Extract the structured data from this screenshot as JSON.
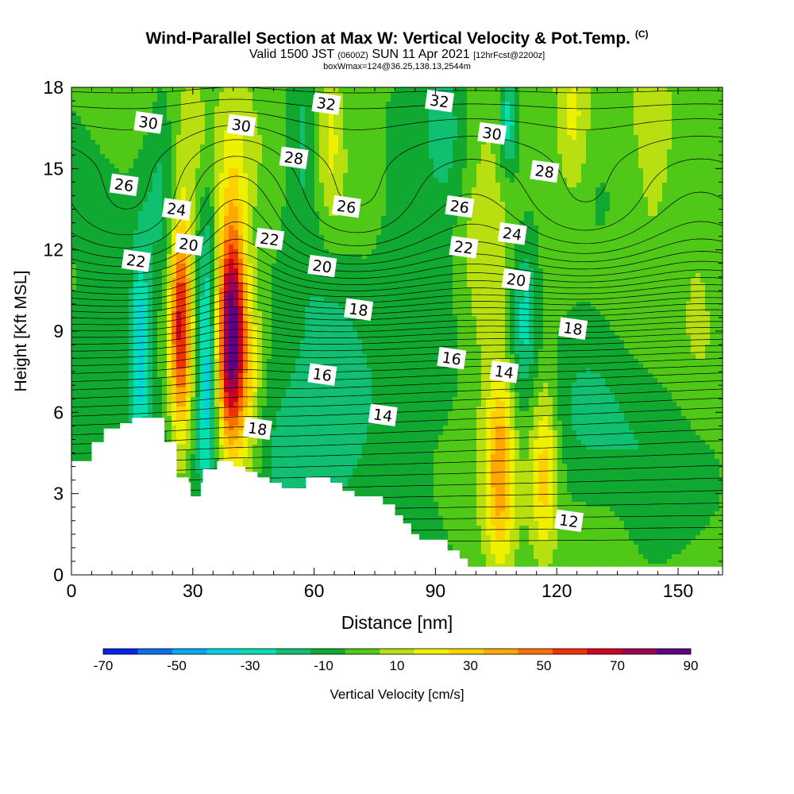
{
  "title": {
    "main": "Wind-Parallel Section at Max W: Vertical Velocity & Pot.Temp.",
    "copyright": "(C)",
    "valid_prefix": "Valid 1500 JST",
    "valid_utc": "(0600Z)",
    "valid_date": "SUN 11 Apr 2021",
    "forecast": "[12hrFcst@2200z]",
    "box_info": "boxWmax=124@36.25,138.13,2544m"
  },
  "chart_data": {
    "type": "heatmap",
    "xlabel": "Distance [nm]",
    "ylabel": "Height [Kft MSL]",
    "xlim": [
      0,
      161
    ],
    "ylim": [
      0,
      18
    ],
    "x_ticks": [
      0,
      30,
      60,
      90,
      120,
      150
    ],
    "y_ticks": [
      0,
      3,
      6,
      9,
      12,
      15,
      18
    ],
    "grid": false,
    "colorbar": {
      "label": "Vertical Velocity [cm/s]",
      "tick_labels": [
        -70,
        -50,
        -30,
        -10,
        10,
        30,
        50,
        70,
        90
      ],
      "bounds": [
        -70,
        -60,
        -50,
        -40,
        -30,
        -20,
        -10,
        0,
        10,
        20,
        30,
        40,
        50,
        60,
        70,
        80,
        90
      ],
      "colors": [
        "#0022ee",
        "#0a6ee8",
        "#00aaee",
        "#00d0e0",
        "#00e0b0",
        "#10c070",
        "#10a830",
        "#50c818",
        "#b8e010",
        "#eef000",
        "#ffd000",
        "#ffa800",
        "#ff7000",
        "#f03000",
        "#d00020",
        "#a00050",
        "#600080"
      ]
    },
    "terrain_profile": [
      [
        0,
        4.2
      ],
      [
        5,
        4.2
      ],
      [
        5,
        4.9
      ],
      [
        8,
        4.9
      ],
      [
        8,
        5.4
      ],
      [
        12,
        5.4
      ],
      [
        12,
        5.6
      ],
      [
        15,
        5.6
      ],
      [
        15,
        5.8
      ],
      [
        23,
        5.8
      ],
      [
        23,
        4.9
      ],
      [
        26,
        4.9
      ],
      [
        26,
        3.6
      ],
      [
        29,
        3.6
      ],
      [
        29,
        3.4
      ],
      [
        29.5,
        3.4
      ],
      [
        29.5,
        2.9
      ],
      [
        32,
        2.9
      ],
      [
        32,
        3.4
      ],
      [
        32.5,
        3.4
      ],
      [
        32.5,
        3.9
      ],
      [
        36,
        3.9
      ],
      [
        36,
        4.2
      ],
      [
        40,
        4.2
      ],
      [
        40,
        4.0
      ],
      [
        43,
        4.0
      ],
      [
        43,
        3.8
      ],
      [
        46,
        3.8
      ],
      [
        46,
        3.6
      ],
      [
        49,
        3.6
      ],
      [
        49,
        3.4
      ],
      [
        52,
        3.4
      ],
      [
        52,
        3.2
      ],
      [
        58,
        3.2
      ],
      [
        58,
        3.6
      ],
      [
        64,
        3.6
      ],
      [
        64,
        3.4
      ],
      [
        67,
        3.4
      ],
      [
        67,
        3.1
      ],
      [
        70,
        3.1
      ],
      [
        70,
        2.9
      ],
      [
        77,
        2.9
      ],
      [
        77,
        2.6
      ],
      [
        80,
        2.6
      ],
      [
        80,
        2.2
      ],
      [
        82,
        2.2
      ],
      [
        82,
        1.9
      ],
      [
        84,
        1.9
      ],
      [
        84,
        1.5
      ],
      [
        86,
        1.5
      ],
      [
        86,
        1.3
      ],
      [
        93,
        1.3
      ],
      [
        93,
        0.9
      ],
      [
        96,
        0.9
      ],
      [
        96,
        0.6
      ],
      [
        98,
        0.6
      ],
      [
        98,
        0.3
      ],
      [
        161,
        0.3
      ]
    ],
    "vertical_velocity_features": [
      {
        "x": 10,
        "y": 8.5,
        "value": -12,
        "sx": 7,
        "sy": 4
      },
      {
        "x": 17,
        "y": 8.5,
        "value": -35,
        "sx": 1.6,
        "sy": 2.6
      },
      {
        "x": 27,
        "y": 9.3,
        "value": 72,
        "sx": 2.0,
        "sy": 3.0
      },
      {
        "x": 33.5,
        "y": 7.6,
        "value": -40,
        "sx": 1.8,
        "sy": 3.6
      },
      {
        "x": 39.5,
        "y": 9.0,
        "value": 95,
        "sx": 2.4,
        "sy": 3.0
      },
      {
        "x": 44,
        "y": 7.0,
        "value": 18,
        "sx": 2.2,
        "sy": 3.0
      },
      {
        "x": 52,
        "y": 5.5,
        "value": -14,
        "sx": 6,
        "sy": 2.5
      },
      {
        "x": 65,
        "y": 6.5,
        "value": -16,
        "sx": 6,
        "sy": 3
      },
      {
        "x": 76,
        "y": 5.5,
        "value": -14,
        "sx": 8,
        "sy": 2.5
      },
      {
        "x": 64,
        "y": 16.5,
        "value": 22,
        "sx": 2.5,
        "sy": 2.5
      },
      {
        "x": 57,
        "y": 15.5,
        "value": -15,
        "sx": 3,
        "sy": 2.5
      },
      {
        "x": 30,
        "y": 16.0,
        "value": 12,
        "sx": 3,
        "sy": 2.5
      },
      {
        "x": 40,
        "y": 15.5,
        "value": 12,
        "sx": 3,
        "sy": 2.5
      },
      {
        "x": 22,
        "y": 14.5,
        "value": -12,
        "sx": 3,
        "sy": 3
      },
      {
        "x": 102,
        "y": 13.0,
        "value": 12,
        "sx": 4,
        "sy": 5
      },
      {
        "x": 108,
        "y": 16.8,
        "value": -32,
        "sx": 1.5,
        "sy": 1.3
      },
      {
        "x": 112,
        "y": 9.7,
        "value": -30,
        "sx": 2.5,
        "sy": 2.0
      },
      {
        "x": 124,
        "y": 16.5,
        "value": 22,
        "sx": 3,
        "sy": 2.2
      },
      {
        "x": 106,
        "y": 4.0,
        "value": 40,
        "sx": 2.4,
        "sy": 2.6
      },
      {
        "x": 117,
        "y": 4.0,
        "value": 33,
        "sx": 2.4,
        "sy": 2.4
      },
      {
        "x": 141,
        "y": 3.5,
        "value": -10,
        "sx": 6,
        "sy": 3.5
      },
      {
        "x": 130,
        "y": 6.5,
        "value": -12,
        "sx": 7,
        "sy": 2.5
      },
      {
        "x": 144,
        "y": 16.0,
        "value": 12,
        "sx": 2.5,
        "sy": 3
      },
      {
        "x": 155,
        "y": 11.0,
        "value": 12,
        "sx": 4,
        "sy": 3
      },
      {
        "x": 80,
        "y": 13.0,
        "value": -10,
        "sx": 5,
        "sy": 3
      },
      {
        "x": 92,
        "y": 16.0,
        "value": -12,
        "sx": 4,
        "sy": 3
      }
    ],
    "potential_temperature_contour_labels": [
      {
        "label": "30",
        "x": 19,
        "y": 16.7
      },
      {
        "label": "30",
        "x": 42,
        "y": 16.6
      },
      {
        "label": "32",
        "x": 63,
        "y": 17.4
      },
      {
        "label": "32",
        "x": 91,
        "y": 17.5
      },
      {
        "label": "30",
        "x": 104,
        "y": 16.3
      },
      {
        "label": "28",
        "x": 55,
        "y": 15.4
      },
      {
        "label": "28",
        "x": 117,
        "y": 14.9
      },
      {
        "label": "26",
        "x": 13,
        "y": 14.4
      },
      {
        "label": "26",
        "x": 68,
        "y": 13.6
      },
      {
        "label": "26",
        "x": 96,
        "y": 13.6
      },
      {
        "label": "24",
        "x": 26,
        "y": 13.5
      },
      {
        "label": "24",
        "x": 109,
        "y": 12.6
      },
      {
        "label": "22",
        "x": 16,
        "y": 11.6
      },
      {
        "label": "22",
        "x": 49,
        "y": 12.4
      },
      {
        "label": "22",
        "x": 97,
        "y": 12.1
      },
      {
        "label": "20",
        "x": 29,
        "y": 12.2
      },
      {
        "label": "20",
        "x": 62,
        "y": 11.4
      },
      {
        "label": "20",
        "x": 110,
        "y": 10.9
      },
      {
        "label": "18",
        "x": 71,
        "y": 9.8
      },
      {
        "label": "18",
        "x": 124,
        "y": 9.1
      },
      {
        "label": "18",
        "x": 46,
        "y": 5.4
      },
      {
        "label": "16",
        "x": 62,
        "y": 7.4
      },
      {
        "label": "16",
        "x": 94,
        "y": 8.0
      },
      {
        "label": "14",
        "x": 77,
        "y": 5.9
      },
      {
        "label": "14",
        "x": 107,
        "y": 7.5
      },
      {
        "label": "12",
        "x": 123,
        "y": 2.0
      }
    ]
  }
}
